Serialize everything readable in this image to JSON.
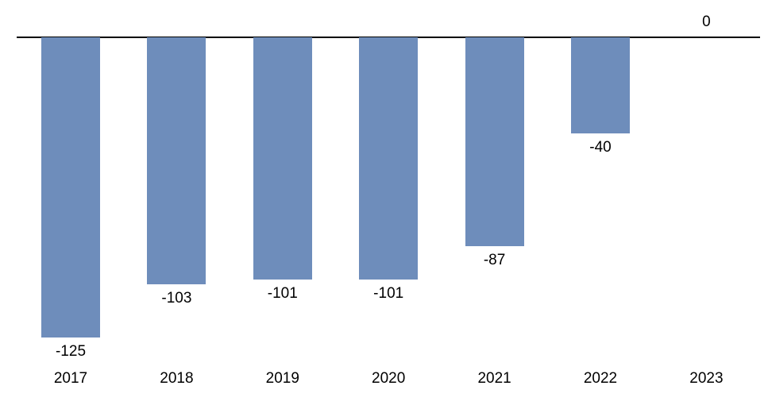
{
  "chart_data": {
    "type": "bar",
    "title": "",
    "xlabel": "",
    "ylabel": "",
    "categories": [
      "2017",
      "2018",
      "2019",
      "2020",
      "2021",
      "2022",
      "2023"
    ],
    "values": [
      -125,
      -103,
      -101,
      -101,
      -87,
      -40,
      0
    ],
    "data_labels": [
      "-125",
      "-103",
      "-101",
      "-101",
      "-87",
      "-40",
      "0"
    ],
    "ylim": [
      -135,
      0
    ],
    "grid": false,
    "legend": false,
    "orientation": "vertical",
    "bar_color": "#6E8DBB",
    "axis_line_color": "#000000",
    "label_color": "#000000",
    "background_color": "#FFFFFF"
  }
}
